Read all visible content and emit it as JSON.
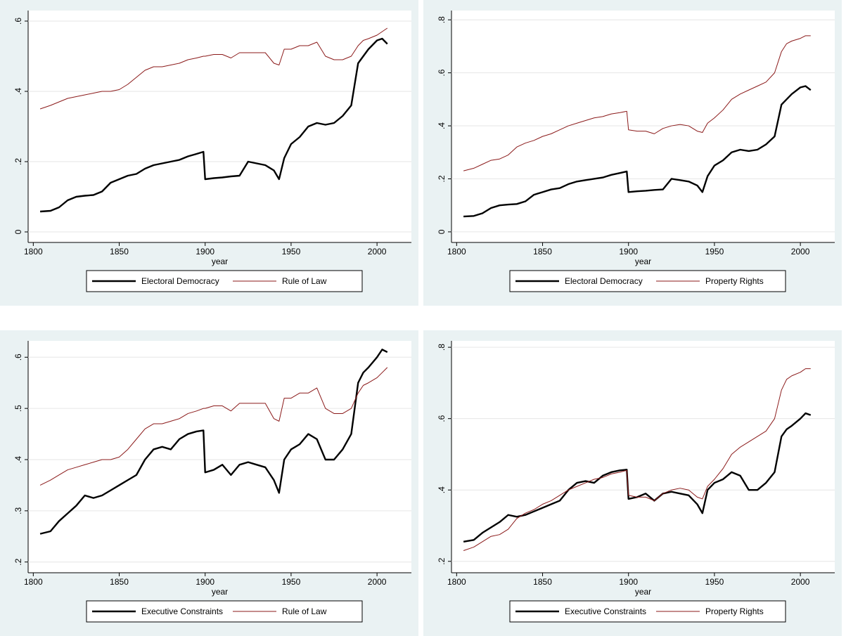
{
  "chart_data": [
    {
      "type": "line",
      "x_label": "year",
      "x": [
        1804,
        1810,
        1815,
        1820,
        1825,
        1830,
        1835,
        1840,
        1845,
        1850,
        1855,
        1860,
        1865,
        1870,
        1875,
        1880,
        1885,
        1890,
        1895,
        1899,
        1900,
        1905,
        1910,
        1915,
        1920,
        1925,
        1930,
        1935,
        1940,
        1943,
        1946,
        1950,
        1955,
        1960,
        1965,
        1970,
        1975,
        1980,
        1985,
        1989,
        1992,
        1995,
        2000,
        2003,
        2006
      ],
      "series": [
        {
          "name": "Electoral Democracy",
          "color": "#000000",
          "values": [
            0.058,
            0.06,
            0.07,
            0.09,
            0.1,
            0.103,
            0.105,
            0.115,
            0.14,
            0.15,
            0.16,
            0.165,
            0.18,
            0.19,
            0.195,
            0.2,
            0.205,
            0.215,
            0.222,
            0.228,
            0.15,
            0.153,
            0.155,
            0.158,
            0.16,
            0.2,
            0.195,
            0.19,
            0.175,
            0.15,
            0.21,
            0.25,
            0.27,
            0.3,
            0.31,
            0.305,
            0.31,
            0.33,
            0.36,
            0.48,
            0.5,
            0.52,
            0.545,
            0.55,
            0.535
          ]
        },
        {
          "name": "Rule of Law",
          "color": "#8b1a1a",
          "values": [
            0.35,
            0.36,
            0.37,
            0.38,
            0.385,
            0.39,
            0.395,
            0.4,
            0.4,
            0.405,
            0.42,
            0.44,
            0.46,
            0.47,
            0.47,
            0.475,
            0.48,
            0.49,
            0.495,
            0.5,
            0.5,
            0.505,
            0.505,
            0.495,
            0.51,
            0.51,
            0.51,
            0.51,
            0.48,
            0.475,
            0.52,
            0.52,
            0.53,
            0.53,
            0.54,
            0.5,
            0.49,
            0.49,
            0.5,
            0.53,
            0.545,
            0.55,
            0.56,
            0.57,
            0.58
          ]
        }
      ],
      "xlim": [
        1797,
        2020
      ],
      "xticks": [
        1800,
        1850,
        1900,
        1950,
        2000
      ],
      "ylim": [
        -0.03,
        0.63
      ],
      "yticks": [
        0,
        {
          "value": 0.2,
          "label": ".2"
        },
        {
          "value": 0.4,
          "label": ".4"
        },
        {
          "value": 0.6,
          "label": ".6"
        }
      ],
      "grid": true
    },
    {
      "type": "line",
      "x_label": "year",
      "x": [
        1804,
        1810,
        1815,
        1820,
        1825,
        1830,
        1835,
        1840,
        1845,
        1850,
        1855,
        1860,
        1865,
        1870,
        1875,
        1880,
        1885,
        1890,
        1895,
        1899,
        1900,
        1905,
        1910,
        1915,
        1920,
        1925,
        1930,
        1935,
        1940,
        1943,
        1946,
        1950,
        1955,
        1960,
        1965,
        1970,
        1975,
        1980,
        1985,
        1989,
        1992,
        1995,
        2000,
        2003,
        2006
      ],
      "series": [
        {
          "name": "Electoral Democracy",
          "color": "#000000",
          "values": [
            0.058,
            0.06,
            0.07,
            0.09,
            0.1,
            0.103,
            0.105,
            0.115,
            0.14,
            0.15,
            0.16,
            0.165,
            0.18,
            0.19,
            0.195,
            0.2,
            0.205,
            0.215,
            0.222,
            0.228,
            0.15,
            0.153,
            0.155,
            0.158,
            0.16,
            0.2,
            0.195,
            0.19,
            0.175,
            0.15,
            0.21,
            0.25,
            0.27,
            0.3,
            0.31,
            0.305,
            0.31,
            0.33,
            0.36,
            0.48,
            0.5,
            0.52,
            0.545,
            0.55,
            0.535
          ]
        },
        {
          "name": "Property Rights",
          "color": "#8b1a1a",
          "values": [
            0.23,
            0.24,
            0.255,
            0.27,
            0.275,
            0.29,
            0.32,
            0.335,
            0.345,
            0.36,
            0.37,
            0.385,
            0.4,
            0.41,
            0.42,
            0.43,
            0.435,
            0.445,
            0.45,
            0.455,
            0.385,
            0.38,
            0.38,
            0.37,
            0.39,
            0.4,
            0.405,
            0.4,
            0.38,
            0.375,
            0.41,
            0.43,
            0.46,
            0.5,
            0.52,
            0.535,
            0.55,
            0.565,
            0.6,
            0.68,
            0.71,
            0.72,
            0.73,
            0.74,
            0.74
          ]
        }
      ],
      "xlim": [
        1797,
        2020
      ],
      "xticks": [
        1800,
        1850,
        1900,
        1950,
        2000
      ],
      "ylim": [
        -0.04,
        0.835
      ],
      "yticks": [
        0,
        {
          "value": 0.2,
          "label": ".2"
        },
        {
          "value": 0.4,
          "label": ".4"
        },
        {
          "value": 0.6,
          "label": ".6"
        },
        {
          "value": 0.8,
          "label": ".8"
        }
      ],
      "grid": true
    },
    {
      "type": "line",
      "x_label": "year",
      "x": [
        1804,
        1810,
        1815,
        1820,
        1825,
        1830,
        1835,
        1840,
        1845,
        1850,
        1855,
        1860,
        1865,
        1870,
        1875,
        1880,
        1885,
        1890,
        1895,
        1899,
        1900,
        1905,
        1910,
        1915,
        1920,
        1925,
        1930,
        1935,
        1940,
        1943,
        1946,
        1950,
        1955,
        1960,
        1965,
        1970,
        1975,
        1980,
        1985,
        1989,
        1992,
        1995,
        2000,
        2003,
        2006
      ],
      "series": [
        {
          "name": "Executive Constraints",
          "color": "#000000",
          "values": [
            0.255,
            0.26,
            0.28,
            0.295,
            0.31,
            0.33,
            0.325,
            0.33,
            0.34,
            0.35,
            0.36,
            0.37,
            0.4,
            0.42,
            0.425,
            0.42,
            0.44,
            0.45,
            0.455,
            0.457,
            0.375,
            0.38,
            0.39,
            0.37,
            0.39,
            0.395,
            0.39,
            0.385,
            0.36,
            0.335,
            0.4,
            0.42,
            0.43,
            0.45,
            0.44,
            0.4,
            0.4,
            0.42,
            0.45,
            0.55,
            0.57,
            0.58,
            0.6,
            0.615,
            0.61
          ]
        },
        {
          "name": "Rule of Law",
          "color": "#8b1a1a",
          "values": [
            0.35,
            0.36,
            0.37,
            0.38,
            0.385,
            0.39,
            0.395,
            0.4,
            0.4,
            0.405,
            0.42,
            0.44,
            0.46,
            0.47,
            0.47,
            0.475,
            0.48,
            0.49,
            0.495,
            0.5,
            0.5,
            0.505,
            0.505,
            0.495,
            0.51,
            0.51,
            0.51,
            0.51,
            0.48,
            0.475,
            0.52,
            0.52,
            0.53,
            0.53,
            0.54,
            0.5,
            0.49,
            0.49,
            0.5,
            0.53,
            0.545,
            0.55,
            0.56,
            0.57,
            0.58
          ]
        }
      ],
      "xlim": [
        1797,
        2020
      ],
      "xticks": [
        1800,
        1850,
        1900,
        1950,
        2000
      ],
      "ylim": [
        0.179,
        0.632
      ],
      "yticks": [
        {
          "value": 0.2,
          "label": ".2"
        },
        {
          "value": 0.3,
          "label": ".3"
        },
        {
          "value": 0.4,
          "label": ".4"
        },
        {
          "value": 0.5,
          "label": ".5"
        },
        {
          "value": 0.6,
          "label": ".6"
        }
      ],
      "grid": true
    },
    {
      "type": "line",
      "x_label": "year",
      "x": [
        1804,
        1810,
        1815,
        1820,
        1825,
        1830,
        1835,
        1840,
        1845,
        1850,
        1855,
        1860,
        1865,
        1870,
        1875,
        1880,
        1885,
        1890,
        1895,
        1899,
        1900,
        1905,
        1910,
        1915,
        1920,
        1925,
        1930,
        1935,
        1940,
        1943,
        1946,
        1950,
        1955,
        1960,
        1965,
        1970,
        1975,
        1980,
        1985,
        1989,
        1992,
        1995,
        2000,
        2003,
        2006
      ],
      "series": [
        {
          "name": "Executive Constraints",
          "color": "#000000",
          "values": [
            0.255,
            0.26,
            0.28,
            0.295,
            0.31,
            0.33,
            0.325,
            0.33,
            0.34,
            0.35,
            0.36,
            0.37,
            0.4,
            0.42,
            0.425,
            0.42,
            0.44,
            0.45,
            0.455,
            0.457,
            0.375,
            0.38,
            0.39,
            0.37,
            0.39,
            0.395,
            0.39,
            0.385,
            0.36,
            0.335,
            0.4,
            0.42,
            0.43,
            0.45,
            0.44,
            0.4,
            0.4,
            0.42,
            0.45,
            0.55,
            0.57,
            0.58,
            0.6,
            0.615,
            0.61
          ]
        },
        {
          "name": "Property Rights",
          "color": "#8b1a1a",
          "values": [
            0.23,
            0.24,
            0.255,
            0.27,
            0.275,
            0.29,
            0.32,
            0.335,
            0.345,
            0.36,
            0.37,
            0.385,
            0.4,
            0.41,
            0.42,
            0.43,
            0.435,
            0.445,
            0.45,
            0.455,
            0.385,
            0.38,
            0.38,
            0.37,
            0.39,
            0.4,
            0.405,
            0.4,
            0.38,
            0.375,
            0.41,
            0.43,
            0.46,
            0.5,
            0.52,
            0.535,
            0.55,
            0.565,
            0.6,
            0.68,
            0.71,
            0.72,
            0.73,
            0.74,
            0.74
          ]
        }
      ],
      "xlim": [
        1797,
        2020
      ],
      "xticks": [
        1800,
        1850,
        1900,
        1950,
        2000
      ],
      "ylim": [
        0.168,
        0.818
      ],
      "yticks": [
        {
          "value": 0.2,
          "label": ".2"
        },
        {
          "value": 0.4,
          "label": ".4"
        },
        {
          "value": 0.6,
          "label": ".6"
        },
        {
          "value": 0.8,
          "label": ".8"
        }
      ],
      "grid": true
    }
  ]
}
